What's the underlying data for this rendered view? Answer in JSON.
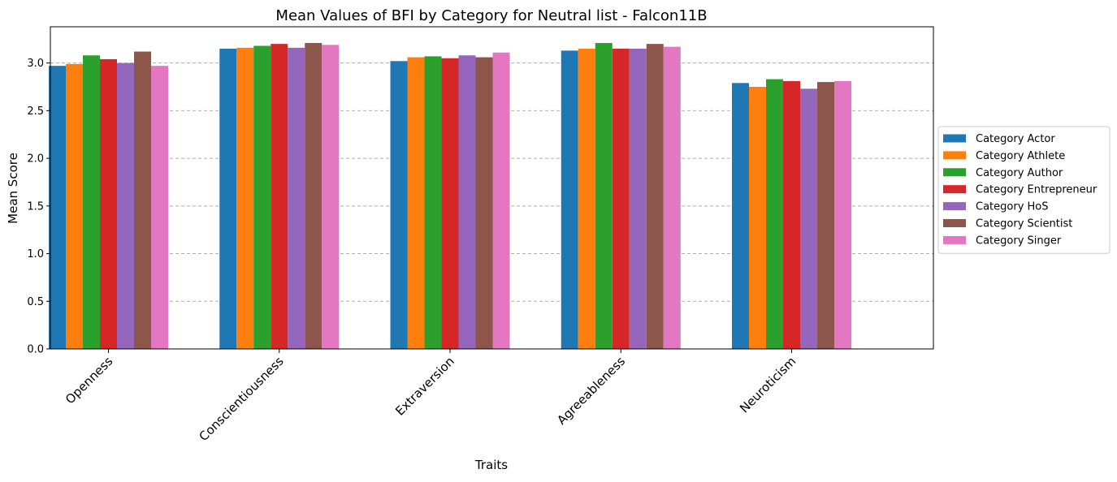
{
  "chart_data": {
    "type": "bar",
    "title": "Mean Values of BFI by Category for Neutral list - Falcon11B",
    "xlabel": "Traits",
    "ylabel": "Mean Score",
    "ylim": [
      0,
      3.38
    ],
    "yticks": [
      0.0,
      0.5,
      1.0,
      1.5,
      2.0,
      2.5,
      3.0
    ],
    "ytick_labels": [
      "0.0",
      "0.5",
      "1.0",
      "1.5",
      "2.0",
      "2.5",
      "3.0"
    ],
    "grid": "horizontal dashed",
    "legend_position": "right (outside plot)",
    "categories": [
      "Openness",
      "Conscientiousness",
      "Extraversion",
      "Agreeableness",
      "Neuroticism"
    ],
    "series": [
      {
        "name": "Category Actor",
        "color": "#1f77b4",
        "values": [
          2.97,
          3.15,
          3.02,
          3.13,
          2.79
        ]
      },
      {
        "name": "Category Athlete",
        "color": "#ff7f0e",
        "values": [
          2.99,
          3.16,
          3.06,
          3.15,
          2.75
        ]
      },
      {
        "name": "Category Author",
        "color": "#2ca02c",
        "values": [
          3.08,
          3.18,
          3.07,
          3.21,
          2.83
        ]
      },
      {
        "name": "Category Entrepreneur",
        "color": "#d62728",
        "values": [
          3.04,
          3.2,
          3.05,
          3.15,
          2.81
        ]
      },
      {
        "name": "Category HoS",
        "color": "#9467bd",
        "values": [
          3.0,
          3.16,
          3.08,
          3.15,
          2.73
        ]
      },
      {
        "name": "Category Scientist",
        "color": "#8c564b",
        "values": [
          3.12,
          3.21,
          3.06,
          3.2,
          2.8
        ]
      },
      {
        "name": "Category Singer",
        "color": "#e377c2",
        "values": [
          2.97,
          3.19,
          3.11,
          3.17,
          2.81
        ]
      }
    ]
  }
}
